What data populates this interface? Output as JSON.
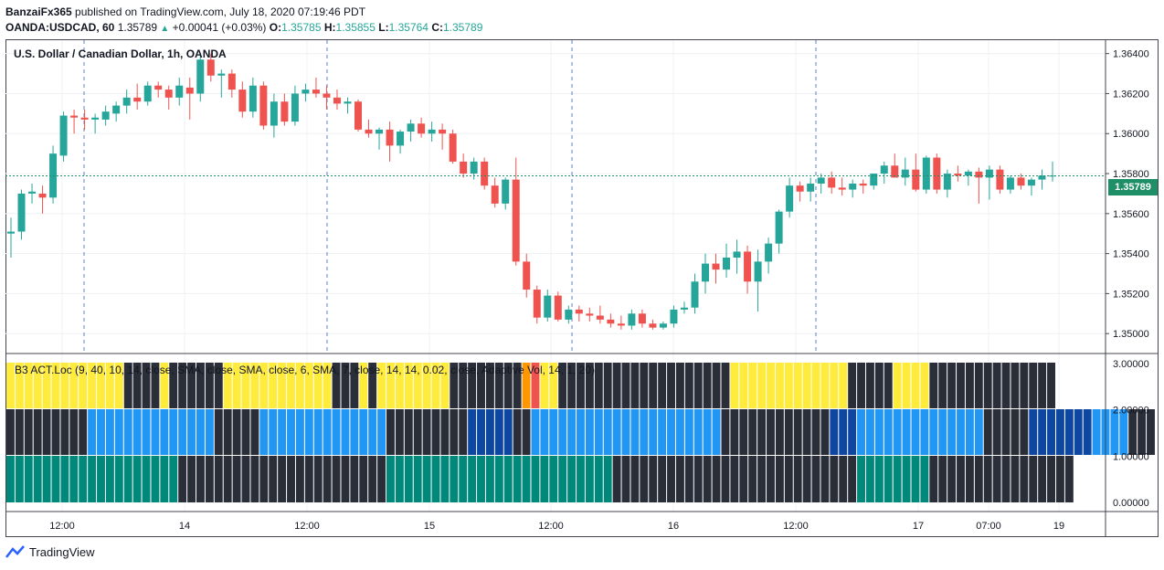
{
  "header": {
    "publisher": "BanzaiFx365",
    "published_text": "published on TradingView.com, July 18, 2020 07:19:46 PDT",
    "symbol": "OANDA:USDCAD, 60",
    "last": "1.35789",
    "change": "+0.00041 (+0.03%)",
    "o_label": "O:",
    "o_value": "1.35785",
    "h_label": "H:",
    "h_value": "1.35855",
    "l_label": "L:",
    "l_value": "1.35764",
    "c_label": "C:",
    "c_value": "1.35789"
  },
  "chart_title": "U.S. Dollar / Canadian Dollar, 1h, OANDA",
  "indicator_title": "B3 ACT.Loc (9, 40, 10, 14, close, SMA, close, SMA, close, 6, SMA, 7, close, 14, 14, 0.02, close, Adaptive Vol, 14, 1, 20)",
  "price_tag": "1.35789",
  "footer_brand": "TradingView",
  "colors": {
    "up": "#26a69a",
    "down": "#ef5350",
    "yellow": "#ffeb3b",
    "blue": "#2196f3",
    "darkblue": "#0d47a1",
    "teal": "#00897b",
    "dark": "#2a2e39",
    "orange": "#ff9800",
    "red": "#ef5350"
  },
  "chart_data": [
    {
      "type": "candlestick",
      "title": "U.S. Dollar / Canadian Dollar, 1h, OANDA",
      "ylim": [
        1.3495,
        1.365
      ],
      "y_ticks": [
        "1.36400",
        "1.36200",
        "1.36000",
        "1.35800",
        "1.35600",
        "1.35400",
        "1.35200",
        "1.35000"
      ],
      "x_ticks": [
        "12:00",
        "14",
        "12:00",
        "15",
        "12:00",
        "16",
        "12:00",
        "17",
        "07:00",
        "19"
      ],
      "last_price": 1.35789,
      "candles": [
        [
          1.355,
          1.3558,
          1.3538,
          1.3551
        ],
        [
          1.3551,
          1.3572,
          1.3547,
          1.357
        ],
        [
          1.357,
          1.3575,
          1.3565,
          1.3571
        ],
        [
          1.357,
          1.3574,
          1.356,
          1.3568
        ],
        [
          1.3568,
          1.3594,
          1.3565,
          1.359
        ],
        [
          1.3589,
          1.3611,
          1.3586,
          1.3609
        ],
        [
          1.3609,
          1.3612,
          1.36,
          1.3608
        ],
        [
          1.3608,
          1.3612,
          1.3602,
          1.3607
        ],
        [
          1.3607,
          1.361,
          1.36,
          1.3608
        ],
        [
          1.3607,
          1.3614,
          1.3604,
          1.3611
        ],
        [
          1.361,
          1.3616,
          1.3606,
          1.3614
        ],
        [
          1.3614,
          1.3622,
          1.361,
          1.3618
        ],
        [
          1.3618,
          1.3625,
          1.3612,
          1.3616
        ],
        [
          1.3616,
          1.3626,
          1.3614,
          1.3624
        ],
        [
          1.3624,
          1.3626,
          1.3618,
          1.3622
        ],
        [
          1.3622,
          1.3624,
          1.3612,
          1.3618
        ],
        [
          1.3618,
          1.3628,
          1.3614,
          1.3624
        ],
        [
          1.3623,
          1.3628,
          1.3607,
          1.362
        ],
        [
          1.362,
          1.364,
          1.3616,
          1.3637
        ],
        [
          1.3637,
          1.364,
          1.3626,
          1.3629
        ],
        [
          1.3629,
          1.3632,
          1.3618,
          1.363
        ],
        [
          1.363,
          1.3632,
          1.3618,
          1.3622
        ],
        [
          1.3622,
          1.3626,
          1.3608,
          1.3611
        ],
        [
          1.3611,
          1.3628,
          1.3608,
          1.3624
        ],
        [
          1.3624,
          1.3626,
          1.3602,
          1.3604
        ],
        [
          1.3604,
          1.362,
          1.3598,
          1.3616
        ],
        [
          1.3616,
          1.362,
          1.3604,
          1.3606
        ],
        [
          1.3606,
          1.3624,
          1.3604,
          1.362
        ],
        [
          1.362,
          1.3625,
          1.3616,
          1.3622
        ],
        [
          1.3622,
          1.3628,
          1.3618,
          1.362
        ],
        [
          1.362,
          1.3624,
          1.3612,
          1.3618
        ],
        [
          1.3618,
          1.3622,
          1.3612,
          1.3615
        ],
        [
          1.3615,
          1.3618,
          1.361,
          1.3616
        ],
        [
          1.3616,
          1.3617,
          1.3601,
          1.3602
        ],
        [
          1.3602,
          1.3607,
          1.3598,
          1.36
        ],
        [
          1.36,
          1.3603,
          1.3592,
          1.3602
        ],
        [
          1.3602,
          1.3606,
          1.3586,
          1.3594
        ],
        [
          1.3594,
          1.3602,
          1.359,
          1.3601
        ],
        [
          1.3601,
          1.3607,
          1.3596,
          1.3605
        ],
        [
          1.3605,
          1.3608,
          1.3598,
          1.36
        ],
        [
          1.36,
          1.3606,
          1.3596,
          1.3602
        ],
        [
          1.3602,
          1.3605,
          1.3592,
          1.36
        ],
        [
          1.36,
          1.3602,
          1.3585,
          1.3586
        ],
        [
          1.3586,
          1.359,
          1.3578,
          1.358
        ],
        [
          1.358,
          1.3588,
          1.3577,
          1.3586
        ],
        [
          1.3586,
          1.3588,
          1.3572,
          1.3574
        ],
        [
          1.3574,
          1.3578,
          1.3563,
          1.3565
        ],
        [
          1.3565,
          1.3578,
          1.3562,
          1.3577
        ],
        [
          1.3577,
          1.3588,
          1.3534,
          1.3536
        ],
        [
          1.3536,
          1.354,
          1.3518,
          1.3522
        ],
        [
          1.3522,
          1.3524,
          1.3505,
          1.3508
        ],
        [
          1.3508,
          1.3522,
          1.3506,
          1.3519
        ],
        [
          1.3519,
          1.3521,
          1.3506,
          1.3507
        ],
        [
          1.3507,
          1.3514,
          1.3505,
          1.3512
        ],
        [
          1.3512,
          1.3514,
          1.3506,
          1.351
        ],
        [
          1.351,
          1.3513,
          1.3506,
          1.3509
        ],
        [
          1.3509,
          1.3514,
          1.3505,
          1.3507
        ],
        [
          1.3507,
          1.351,
          1.3503,
          1.3505
        ],
        [
          1.3505,
          1.3509,
          1.3502,
          1.3504
        ],
        [
          1.3504,
          1.3512,
          1.3502,
          1.351
        ],
        [
          1.351,
          1.3512,
          1.3503,
          1.3505
        ],
        [
          1.3505,
          1.3507,
          1.3502,
          1.3503
        ],
        [
          1.3503,
          1.3506,
          1.3502,
          1.3505
        ],
        [
          1.3505,
          1.3514,
          1.3503,
          1.3512
        ],
        [
          1.3512,
          1.3516,
          1.351,
          1.3513
        ],
        [
          1.3513,
          1.353,
          1.351,
          1.3526
        ],
        [
          1.3526,
          1.354,
          1.352,
          1.3535
        ],
        [
          1.3535,
          1.354,
          1.3525,
          1.3532
        ],
        [
          1.3532,
          1.3545,
          1.3528,
          1.3538
        ],
        [
          1.3538,
          1.3547,
          1.353,
          1.3541
        ],
        [
          1.3541,
          1.3544,
          1.352,
          1.3526
        ],
        [
          1.3526,
          1.3542,
          1.3511,
          1.3536
        ],
        [
          1.3536,
          1.3548,
          1.353,
          1.3545
        ],
        [
          1.3545,
          1.3562,
          1.354,
          1.3561
        ],
        [
          1.3561,
          1.3578,
          1.3558,
          1.3574
        ],
        [
          1.3574,
          1.3576,
          1.3566,
          1.3571
        ],
        [
          1.3571,
          1.3578,
          1.3566,
          1.3575
        ],
        [
          1.3575,
          1.358,
          1.357,
          1.3578
        ],
        [
          1.3578,
          1.3581,
          1.357,
          1.3573
        ],
        [
          1.3573,
          1.3578,
          1.3569,
          1.3572
        ],
        [
          1.3572,
          1.3577,
          1.3568,
          1.3575
        ],
        [
          1.3575,
          1.3577,
          1.357,
          1.3574
        ],
        [
          1.3574,
          1.358,
          1.3572,
          1.358
        ],
        [
          1.358,
          1.3586,
          1.3575,
          1.3584
        ],
        [
          1.3584,
          1.359,
          1.3579,
          1.3578
        ],
        [
          1.3578,
          1.3588,
          1.3574,
          1.3582
        ],
        [
          1.3582,
          1.359,
          1.3571,
          1.3572
        ],
        [
          1.3572,
          1.3589,
          1.357,
          1.3588
        ],
        [
          1.3588,
          1.359,
          1.357,
          1.3572
        ],
        [
          1.3572,
          1.3582,
          1.3568,
          1.358
        ],
        [
          1.358,
          1.3584,
          1.3576,
          1.3579
        ],
        [
          1.3579,
          1.3582,
          1.3574,
          1.3581
        ],
        [
          1.3581,
          1.3583,
          1.3565,
          1.3578
        ],
        [
          1.3578,
          1.3584,
          1.3567,
          1.3582
        ],
        [
          1.3582,
          1.3584,
          1.357,
          1.3572
        ],
        [
          1.3572,
          1.3579,
          1.357,
          1.3578
        ],
        [
          1.3578,
          1.358,
          1.3572,
          1.3574
        ],
        [
          1.3574,
          1.3578,
          1.3569,
          1.3577
        ],
        [
          1.3577,
          1.3582,
          1.3572,
          1.3579
        ],
        [
          1.3579,
          1.3586,
          1.3576,
          1.3579
        ]
      ]
    },
    {
      "type": "heatmap",
      "title": "B3 ACT.Loc (9, 40, 10, 14, close, SMA, close, SMA, close, 6, SMA, 7, close, 14, 14, 0.02, close, Adaptive Vol, 14, 1, 20)",
      "ylim": [
        0,
        3
      ],
      "y_ticks": [
        "3.00000",
        "2.00000",
        "1.00000",
        "0.00000"
      ],
      "rows": {
        "top": "YYYYYYYYYYYYYDDDDYDDDDDDYYYYYYYYYYYYDDDYDYYYYYYYYDDDDDDDDOYYYDDDDDDDDDDDDDDDDDDDYYYYYYYYYYYYYDDDDDYYYYDDDDDDDDDDDDDD",
        "mid": "DDDDDDDDDBBBBBBBBBBBBBBDDDDDBBBBBBBBBBBBBBDDDDDDDDDKKKKKDDBBBBBBBBBBBBBBBBBBBBBDDDDDDDDDDDDKKKBBBBBBBBBBBBBBDDDDDKKKKKKKBBBBDDD",
        "bot": "TTTTTTTTTTTTTTTTTTTDDDDDDDDDDDDDDDDDDDDDDDTTTTTTTTTTTTTTTTTTTTTTTTTDDDDDDDDDDDDDDDDDDDDDDDDDDDTTTTTTTTDDDDDDDDDDDDDDDD"
      },
      "legend": {
        "Y": "yellow",
        "B": "blue",
        "K": "darkblue",
        "T": "teal",
        "D": "dark",
        "O": "orange",
        "R": "red"
      }
    }
  ]
}
